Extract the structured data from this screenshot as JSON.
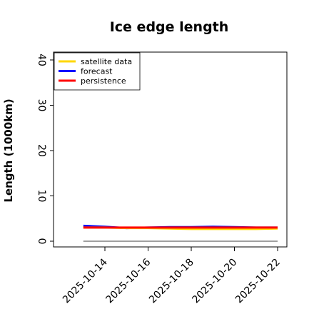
{
  "chart_data": {
    "type": "line",
    "title": "Ice edge length",
    "ylabel": "Length (1000km)",
    "xlabel": "",
    "ylim": [
      0,
      42
    ],
    "yticks": [
      "0",
      "10",
      "20",
      "30",
      "40"
    ],
    "x": [
      "2025-10-13",
      "2025-10-14",
      "2025-10-15",
      "2025-10-16",
      "2025-10-17",
      "2025-10-18",
      "2025-10-19",
      "2025-10-20",
      "2025-10-21",
      "2025-10-22"
    ],
    "xticks": [
      "2025-10-14",
      "2025-10-16",
      "2025-10-18",
      "2025-10-20",
      "2025-10-22"
    ],
    "highlight_xtick": "2025-10-14",
    "highlight_color": "#228b22",
    "baseline": 0,
    "grid": false,
    "legend_position": "top-left",
    "series": [
      {
        "name": "satellite data",
        "color": "#ffd700",
        "values": [
          3.0,
          3.0,
          2.9,
          2.9,
          2.8,
          2.7,
          2.7,
          2.7,
          2.7,
          2.8
        ]
      },
      {
        "name": "forecast",
        "color": "#0000ff",
        "values": [
          3.4,
          3.2,
          2.9,
          3.0,
          3.1,
          3.1,
          3.2,
          3.1,
          3.0,
          3.0
        ]
      },
      {
        "name": "persistence",
        "color": "#ff0000",
        "values": [
          3.0,
          3.0,
          3.0,
          3.0,
          3.0,
          3.0,
          3.0,
          3.0,
          3.0,
          3.0
        ]
      }
    ]
  }
}
